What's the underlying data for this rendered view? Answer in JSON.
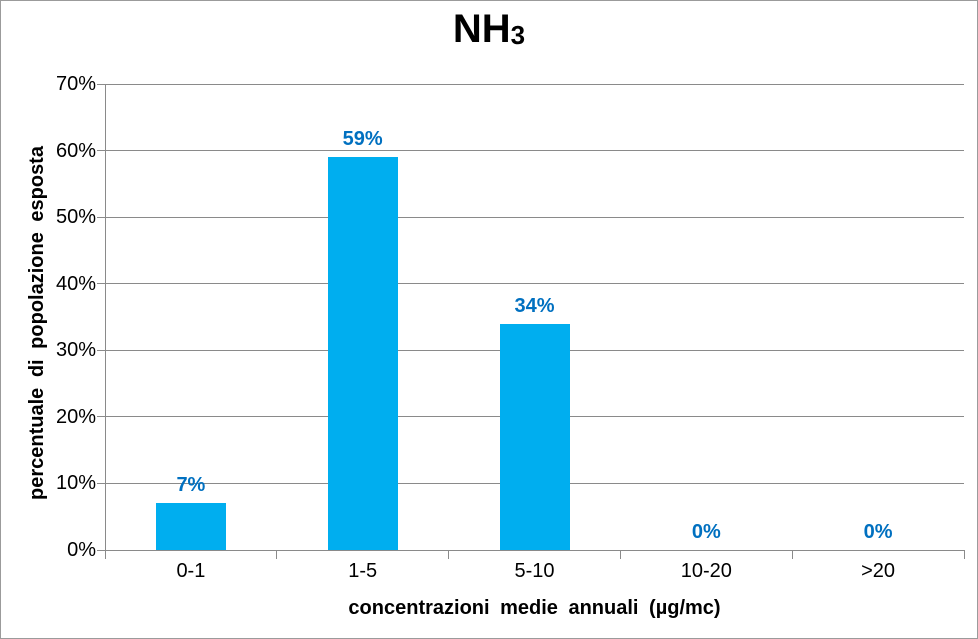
{
  "title": {
    "main": "NH",
    "sub": "3"
  },
  "chart_data": {
    "type": "bar",
    "title": "NH3",
    "categories": [
      "0-1",
      "1-5",
      "5-10",
      "10-20",
      ">20"
    ],
    "values": [
      7,
      59,
      34,
      0,
      0
    ],
    "value_labels": [
      "7%",
      "59%",
      "34%",
      "0%",
      "0%"
    ],
    "xlabel": "concentrazioni medie annuali (µg/mc)",
    "ylabel": "percentuale di popolazione esposta",
    "ylim": [
      0,
      70
    ],
    "yticks": [
      0,
      10,
      20,
      30,
      40,
      50,
      60,
      70
    ],
    "ytick_labels": [
      "0%",
      "10%",
      "20%",
      "30%",
      "40%",
      "50%",
      "60%",
      "70%"
    ],
    "grid": true,
    "legend": false,
    "colors": {
      "bar": "#00AEEF",
      "value_label": "#0070C0",
      "grid": "#8A8A8A",
      "axis": "#8A8A8A",
      "text": "#000000",
      "frame_border": "#9B9B9B",
      "background": "#FFFFFF"
    }
  }
}
